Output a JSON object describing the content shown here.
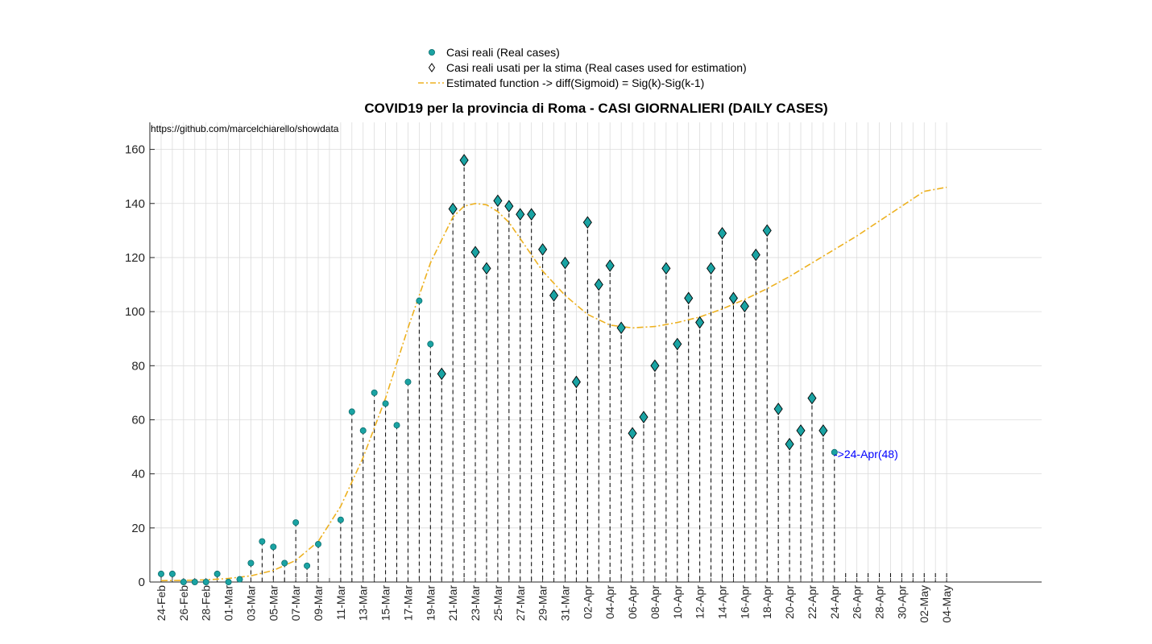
{
  "chart_data": {
    "type": "scatter",
    "title": "COVID19 per la provincia di Roma - CASI GIORNALIERI (DAILY CASES)",
    "source_text": "https://github.com/marcelchiarello/showdata",
    "xlabel": "",
    "ylabel": "",
    "ylim": [
      0,
      170
    ],
    "yticks": [
      0,
      20,
      40,
      60,
      80,
      100,
      120,
      140,
      160
    ],
    "xlim": [
      -0.5,
      70.5
    ],
    "grid": true,
    "legend_position": "top-center",
    "x_tick_labels": [
      "24-Feb",
      "26-Feb",
      "28-Feb",
      "01-Mar",
      "03-Mar",
      "05-Mar",
      "07-Mar",
      "09-Mar",
      "11-Mar",
      "13-Mar",
      "15-Mar",
      "17-Mar",
      "19-Mar",
      "21-Mar",
      "23-Mar",
      "25-Mar",
      "27-Mar",
      "29-Mar",
      "31-Mar",
      "02-Apr",
      "04-Apr",
      "06-Apr",
      "08-Apr",
      "10-Apr",
      "12-Apr",
      "14-Apr",
      "16-Apr",
      "18-Apr",
      "20-Apr",
      "22-Apr",
      "24-Apr",
      "26-Apr",
      "28-Apr",
      "30-Apr",
      "02-May",
      "04-May"
    ],
    "dates": [
      "24-Feb",
      "25-Feb",
      "26-Feb",
      "27-Feb",
      "28-Feb",
      "29-Feb",
      "01-Mar",
      "02-Mar",
      "03-Mar",
      "04-Mar",
      "05-Mar",
      "06-Mar",
      "07-Mar",
      "08-Mar",
      "09-Mar",
      "10-Mar",
      "11-Mar",
      "12-Mar",
      "13-Mar",
      "14-Mar",
      "15-Mar",
      "16-Mar",
      "17-Mar",
      "18-Mar",
      "19-Mar",
      "20-Mar",
      "21-Mar",
      "22-Mar",
      "23-Mar",
      "24-Mar",
      "25-Mar",
      "26-Mar",
      "27-Mar",
      "28-Mar",
      "29-Mar",
      "30-Mar",
      "31-Mar",
      "01-Apr",
      "02-Apr",
      "03-Apr",
      "04-Apr",
      "05-Apr",
      "06-Apr",
      "07-Apr",
      "08-Apr",
      "09-Apr",
      "10-Apr",
      "11-Apr",
      "12-Apr",
      "13-Apr",
      "14-Apr",
      "15-Apr",
      "16-Apr",
      "17-Apr",
      "18-Apr",
      "19-Apr",
      "20-Apr",
      "21-Apr",
      "22-Apr",
      "23-Apr",
      "24-Apr"
    ],
    "series": [
      {
        "name": "Casi reali (Real cases)",
        "values": [
          3,
          3,
          0,
          0,
          0,
          3,
          0,
          1,
          7,
          15,
          13,
          7,
          22,
          6,
          14,
          null,
          23,
          63,
          56,
          70,
          66,
          58,
          74,
          104,
          88,
          77,
          138,
          156,
          122,
          116,
          141,
          139,
          136,
          136,
          123,
          106,
          118,
          74,
          133,
          110,
          117,
          94,
          55,
          61,
          80,
          116,
          88,
          105,
          96,
          116,
          129,
          105,
          102,
          121,
          130,
          64,
          51,
          56,
          68,
          56,
          48
        ],
        "color": "#1aa3a3"
      },
      {
        "name": "Casi reali usati per la stima (Real cases used for estimation)",
        "start_index": 25,
        "end_index": 59,
        "marker": "diamond"
      },
      {
        "name": "Estimated function -> diff(Sigmoid) = Sig(k)-Sig(k-1)",
        "x": [
          0,
          2,
          4,
          6,
          8,
          10,
          12,
          14,
          16,
          18,
          20,
          22,
          24,
          26,
          27,
          28,
          29,
          30,
          31,
          32,
          33,
          34,
          36,
          38,
          40,
          42,
          44,
          46,
          48,
          50,
          52,
          54,
          56,
          58,
          60,
          62,
          64,
          66,
          68,
          70
        ],
        "values": [
          0.5,
          0.6,
          0.8,
          1.3,
          2.3,
          4.3,
          8,
          15,
          28,
          46,
          68,
          94,
          118,
          135,
          139,
          140,
          139.5,
          137,
          133,
          127,
          121,
          115,
          106,
          99,
          95,
          94,
          94.5,
          96,
          98,
          101,
          104.5,
          108.5,
          113,
          118,
          123,
          128,
          133.5,
          139,
          144.5,
          146
        ],
        "color": "#edb120",
        "style": "dashdot"
      }
    ],
    "annotation": {
      "text": "->24-Apr(48)",
      "color": "#0000ff"
    }
  }
}
